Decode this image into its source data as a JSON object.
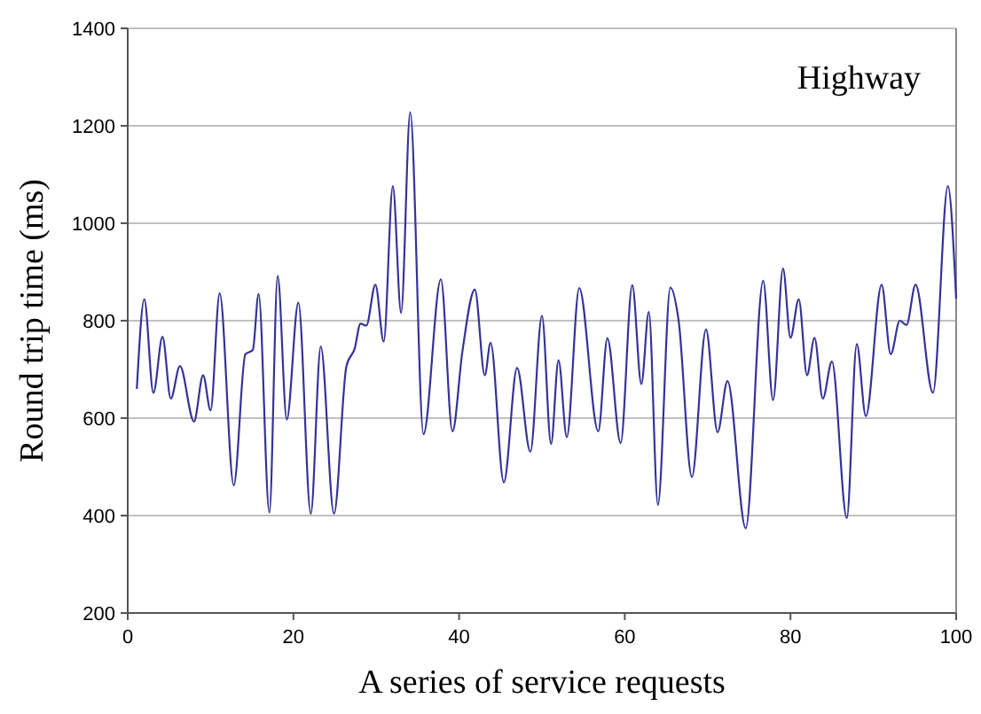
{
  "chart_data": {
    "type": "line",
    "xlabel": "A series of service requests",
    "ylabel": "Round trip time (ms)",
    "annotations": [
      "Highway"
    ],
    "series": [
      {
        "color": "#333399",
        "x": [
          1.1,
          2.0,
          3.1,
          4.2,
          5.2,
          6.3,
          8.0,
          9.1,
          10.0,
          11.1,
          12.8,
          14.2,
          15.1,
          15.8,
          17.1,
          18.1,
          19.2,
          20.6,
          22.1,
          23.3,
          24.9,
          26.4,
          27.4,
          28.1,
          28.8,
          29.9,
          30.9,
          32.0,
          33.0,
          34.1,
          35.7,
          37.8,
          39.2,
          40.4,
          41.9,
          43.1,
          43.8,
          45.4,
          47.0,
          48.6,
          50.0,
          51.1,
          52.0,
          53.0,
          54.5,
          56.8,
          57.9,
          59.5,
          60.9,
          62.0,
          62.9,
          64.0,
          65.5,
          66.5,
          68.1,
          69.8,
          71.2,
          72.4,
          74.6,
          76.7,
          77.9,
          79.1,
          80.0,
          81.0,
          82.0,
          82.9,
          83.9,
          85.0,
          86.8,
          88.0,
          89.1,
          91.0,
          92.1,
          93.2,
          94.0,
          95.1,
          97.2,
          99.0,
          100
        ],
        "values": [
          660,
          844,
          652,
          767,
          640,
          707,
          593,
          688,
          616,
          856,
          462,
          731,
          740,
          855,
          406,
          892,
          597,
          837,
          404,
          747,
          404,
          707,
          743,
          794,
          790,
          874,
          757,
          1076,
          816,
          1228,
          567,
          885,
          573,
          737,
          864,
          688,
          755,
          468,
          703,
          531,
          810,
          547,
          719,
          561,
          867,
          573,
          764,
          549,
          873,
          670,
          818,
          422,
          868,
          800,
          479,
          782,
          571,
          676,
          374,
          882,
          637,
          907,
          765,
          844,
          688,
          765,
          640,
          716,
          395,
          752,
          604,
          874,
          731,
          800,
          791,
          874,
          652,
          1076,
          845
        ]
      }
    ],
    "xlim": [
      0,
      100
    ],
    "xticks": [
      0,
      20,
      40,
      60,
      80,
      100
    ],
    "ylim": [
      200,
      1400
    ],
    "yticks": [
      200,
      400,
      600,
      800,
      1000,
      1200,
      1400
    ],
    "grid": "y",
    "marker": "none",
    "line_style": "solid"
  }
}
